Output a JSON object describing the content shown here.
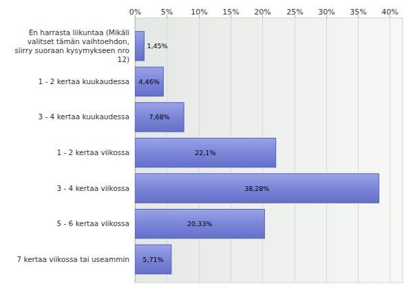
{
  "chart_data": {
    "type": "bar",
    "orientation": "horizontal",
    "categories": [
      "En harrasta liikuntaa (Mikäli valitset tämän vaihtoehdon, siirry suoraan kysymykseen nro 12)",
      "1 - 2 kertaa kuukaudessa",
      "3 - 4 kertaa kuukaudessa",
      "1 - 2 kertaa viikossa",
      "3 - 4 kertaa viikossa",
      "5 - 6 kertaa viikossa",
      "7 kertaa viikossa tai useammin"
    ],
    "values": [
      1.45,
      4.46,
      7.68,
      22.1,
      38.28,
      20.33,
      5.71
    ],
    "value_labels": [
      "1,45%",
      "4,46%",
      "7,68%",
      "22,1%",
      "38,28%",
      "20,33%",
      "5,71%"
    ],
    "data_labels": true,
    "color": "#7b86d9",
    "xlim": [
      0,
      42
    ],
    "xticks": [
      {
        "value": 0,
        "label": "0%"
      },
      {
        "value": 5,
        "label": "5%"
      },
      {
        "value": 10,
        "label": "10%"
      },
      {
        "value": 15,
        "label": "15%"
      },
      {
        "value": 20,
        "label": "20%"
      },
      {
        "value": 25,
        "label": "25%"
      },
      {
        "value": 30,
        "label": "30%"
      },
      {
        "value": 35,
        "label": "35%"
      },
      {
        "value": 40,
        "label": "40%"
      }
    ],
    "grid": true
  }
}
